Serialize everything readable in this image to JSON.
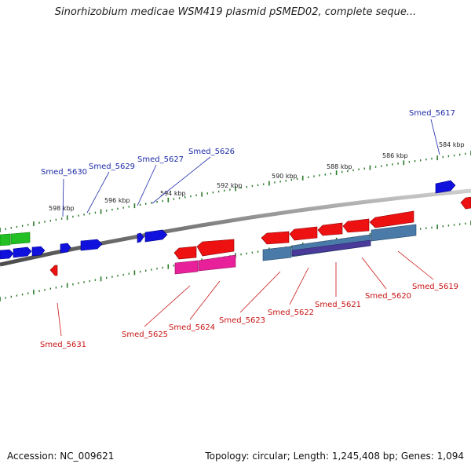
{
  "title": "Sinorhizobium medicae WSM419 plasmid pSMED02, complete seque...",
  "footer": {
    "accession": "Accession: NC_009621",
    "summary": "Topology: circular; Length: 1,245,408 bp; Genes: 1,094"
  },
  "colors": {
    "backbone": "#8a8a8a",
    "tick": "#2a7a2a",
    "label_forward": "#1c2aa8",
    "label_reverse": "#c81414",
    "gene_red": "#ee1111",
    "gene_blue": "#1111dd",
    "gene_green": "#22c022",
    "gene_pink": "#e8209a",
    "gene_steel": "#4a7aa8",
    "gene_purple": "#4a3a9a"
  },
  "tick_labels": [
    "598 kbp",
    "596 kbp",
    "594 kbp",
    "592 kbp",
    "590 kbp",
    "588 kbp",
    "586 kbp",
    "584 kbp"
  ],
  "gene_labels": {
    "forward": [
      "Smed_5630",
      "Smed_5629",
      "Smed_5627",
      "Smed_5626",
      "Smed_5617"
    ],
    "reverse": [
      "Smed_5631",
      "Smed_5625",
      "Smed_5624",
      "Smed_5623",
      "Smed_5622",
      "Smed_5621",
      "Smed_5620",
      "Smed_5619"
    ]
  }
}
